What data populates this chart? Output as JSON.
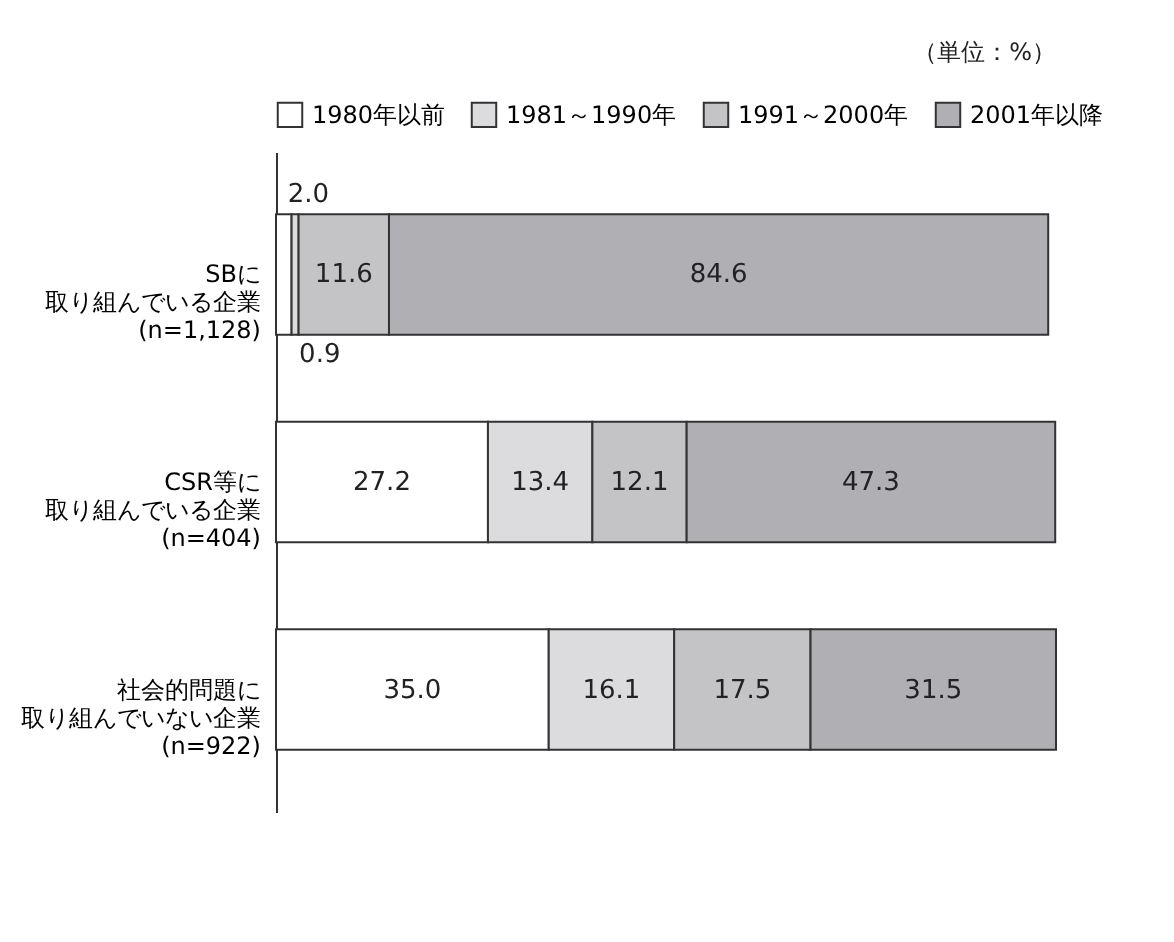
{
  "chart_data": {
    "type": "bar",
    "orientation": "horizontal",
    "stacked": true,
    "legend": "top",
    "grid": false,
    "categories": [
      "SBに取り組んでいる企業(n=1,128)",
      "CSR等に取り組んでいる企業(n=404)",
      "社会的問題に取り組んでいない企業(n=922)"
    ],
    "series": [
      {
        "name": "1980年以前",
        "color": "#ffffff",
        "values": [
          2.0,
          27.2,
          35.0
        ],
        "value_labels": [
          "2.0",
          "27.2",
          "35.0"
        ]
      },
      {
        "name": "1981～1990年",
        "color": "#dcdcde",
        "values": [
          0.9,
          13.4,
          16.1
        ],
        "value_labels": [
          "0.9",
          "13.4",
          "16.1"
        ]
      },
      {
        "name": "1991～2000年",
        "color": "#c4c4c6",
        "values": [
          11.6,
          12.1,
          17.5
        ],
        "value_labels": [
          "11.6",
          "12.1",
          "17.5"
        ]
      },
      {
        "name": "2001年以降",
        "color": "#b0b0b4",
        "values": [
          84.6,
          47.3,
          31.5
        ],
        "value_labels": [
          "84.6",
          "47.3",
          "31.5"
        ]
      }
    ],
    "annotations": [
      "（単位：%）"
    ]
  }
}
